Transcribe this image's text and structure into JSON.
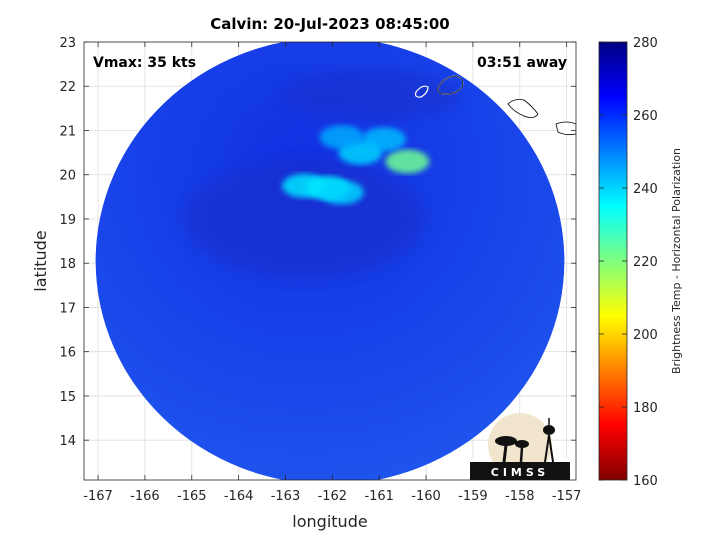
{
  "title": "Calvin: 20-Jul-2023 08:45:00",
  "annotations": {
    "vmax": "Vmax: 35 kts",
    "time_away": "03:51 away"
  },
  "axes": {
    "xlabel": "longitude",
    "ylabel": "latitude",
    "xlim": [
      -167.3,
      -156.8
    ],
    "ylim": [
      13.1,
      23.0
    ],
    "xticks": [
      -167,
      -166,
      -165,
      -164,
      -163,
      -162,
      -161,
      -160,
      -159,
      -158,
      -157
    ],
    "yticks": [
      14,
      15,
      16,
      17,
      18,
      19,
      20,
      21,
      22,
      23
    ],
    "grid": true
  },
  "colorbar": {
    "label": "Brightness Temp - Horizontal Polarization",
    "range": [
      160,
      280
    ],
    "ticks": [
      160,
      180,
      200,
      220,
      240,
      260,
      280
    ],
    "colormap": "jet"
  },
  "swath": {
    "center": [
      -162.05,
      18.05
    ],
    "radius_lon": 5.0,
    "radius_lat": 5.05,
    "background_value": 262
  },
  "warm_cloud_features": [
    {
      "lon": -162.1,
      "lat": 19.7,
      "value": 236
    },
    {
      "lon": -162.6,
      "lat": 19.75,
      "value": 238
    },
    {
      "lon": -161.8,
      "lat": 19.6,
      "value": 240
    },
    {
      "lon": -161.4,
      "lat": 20.5,
      "value": 240
    },
    {
      "lon": -160.4,
      "lat": 20.3,
      "value": 222
    },
    {
      "lon": -160.9,
      "lat": 20.8,
      "value": 243
    },
    {
      "lon": -161.8,
      "lat": 20.85,
      "value": 245
    }
  ],
  "logo": {
    "text": "CIMSS"
  }
}
